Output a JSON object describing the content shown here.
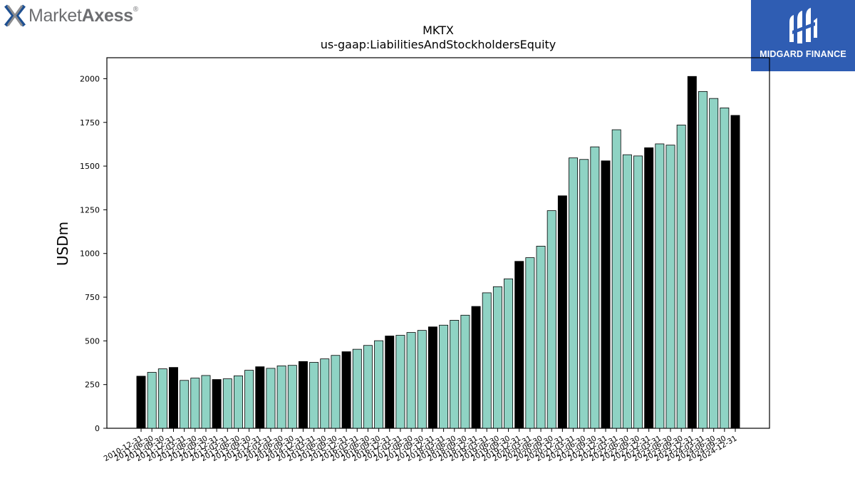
{
  "branding": {
    "company_logo_icon": "market-axess-x-icon",
    "company_name_light": "Market",
    "company_name_bold": "Axess",
    "registered_mark": "®",
    "badge_icon": "midgard-m-icon",
    "badge_text": "MIDGARD FINANCE",
    "badge_color": "#2f5db3"
  },
  "chart_data": {
    "type": "bar",
    "title": "MKTX",
    "subtitle": "us-gaap:LiabilitiesAndStockholdersEquity",
    "xlabel": "",
    "ylabel": "USDm",
    "ylim": [
      0,
      2120
    ],
    "yticks": [
      0,
      250,
      500,
      750,
      1000,
      1250,
      1500,
      1750,
      2000
    ],
    "grid": false,
    "legend": "none",
    "colors": {
      "quarter": "#8fd3c4",
      "year_end": "#000000",
      "edge": "#000000"
    },
    "categories": [
      "2010-12-31",
      "2011-06-30",
      "2011-09-30",
      "2011-12-31",
      "2012-03-31",
      "2012-06-30",
      "2012-09-30",
      "2012-12-31",
      "2013-03-31",
      "2013-06-30",
      "2013-09-30",
      "2013-12-31",
      "2014-03-31",
      "2014-06-30",
      "2014-09-30",
      "2014-12-31",
      "2015-03-31",
      "2015-06-30",
      "2015-09-30",
      "2015-12-31",
      "2016-03-31",
      "2016-06-30",
      "2016-09-30",
      "2016-12-31",
      "2017-03-31",
      "2017-06-30",
      "2017-09-30",
      "2017-12-31",
      "2018-03-31",
      "2018-06-30",
      "2018-09-30",
      "2018-12-31",
      "2019-03-31",
      "2019-06-30",
      "2019-09-30",
      "2019-12-31",
      "2020-03-31",
      "2020-06-30",
      "2020-09-30",
      "2020-12-31",
      "2021-03-31",
      "2021-06-30",
      "2021-09-30",
      "2021-12-31",
      "2022-03-31",
      "2022-06-30",
      "2022-09-30",
      "2022-12-31",
      "2023-03-31",
      "2023-06-30",
      "2023-09-30",
      "2023-12-31",
      "2024-03-31",
      "2024-06-30",
      "2024-09-30",
      "2024-12-31"
    ],
    "values": [
      298,
      320,
      340,
      348,
      274,
      287,
      302,
      279,
      283,
      300,
      332,
      352,
      343,
      357,
      360,
      382,
      377,
      397,
      417,
      438,
      452,
      474,
      501,
      528,
      532,
      548,
      560,
      580,
      590,
      618,
      647,
      697,
      775,
      810,
      855,
      955,
      976,
      1042,
      1245,
      1330,
      1547,
      1538,
      1610,
      1530,
      1708,
      1565,
      1558,
      1605,
      1627,
      1620,
      1735,
      2013,
      1927,
      1887,
      1833,
      1790
    ],
    "year_end_flags": [
      1,
      0,
      0,
      1,
      0,
      0,
      0,
      1,
      0,
      0,
      0,
      1,
      0,
      0,
      0,
      1,
      0,
      0,
      0,
      1,
      0,
      0,
      0,
      1,
      0,
      0,
      0,
      1,
      0,
      0,
      0,
      1,
      0,
      0,
      0,
      1,
      0,
      0,
      0,
      1,
      0,
      0,
      0,
      1,
      0,
      0,
      0,
      1,
      0,
      0,
      0,
      1,
      0,
      0,
      0,
      1
    ]
  }
}
